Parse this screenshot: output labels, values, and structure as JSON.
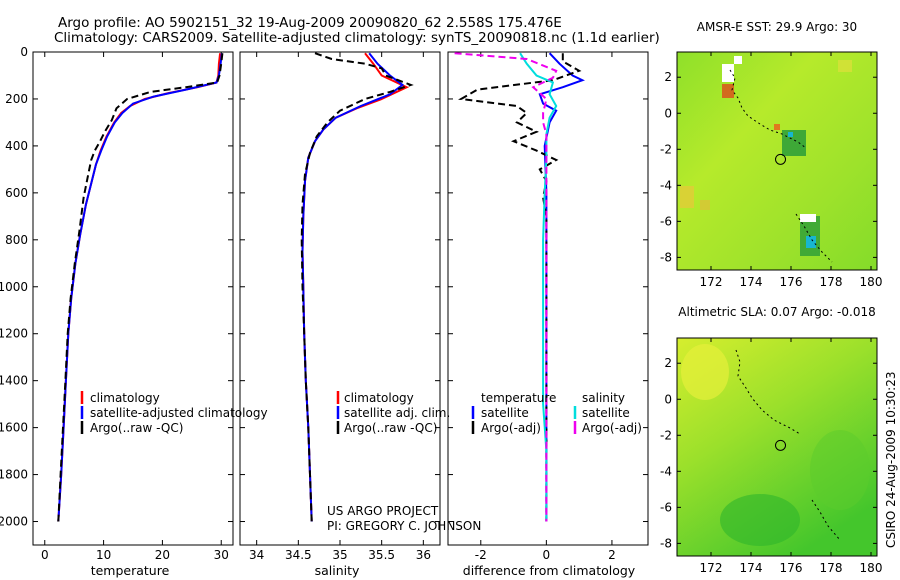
{
  "title_line1": "Argo profile: AO 5902151_32 19-Aug-2009 20090820_62 2.558S 175.476E",
  "title_line2": "Climatology: CARS2009. Satellite-adjusted climatology: synTS_20090818.nc (1.1d earlier)",
  "project_line1": "US ARGO PROJECT",
  "project_line2": "PI: GREGORY C. JOHNSON",
  "side_stamp": "CSIRO 24-Aug-2009 10:30:23",
  "colors": {
    "climatology": "#ff0000",
    "satellite": "#0000ff",
    "argo": "#000000",
    "sat_salinity": "#00dddd",
    "argo_salinity": "#ee00ee"
  },
  "chart_data": [
    {
      "type": "line",
      "id": "temperature",
      "xlabel": "temperature",
      "ylabel": "",
      "xlim": [
        -2,
        32
      ],
      "ylim": [
        2100,
        0
      ],
      "xticks": [
        0,
        10,
        20,
        30
      ],
      "yticks": [
        0,
        200,
        400,
        600,
        800,
        1000,
        1200,
        1400,
        1600,
        1800,
        2000
      ],
      "legend": [
        "climatology",
        "satellite-adjusted climatology",
        "Argo(..raw -QC)"
      ],
      "series": [
        {
          "name": "climatology",
          "color": "#ff0000",
          "dash": "",
          "points": [
            [
              29.8,
              5
            ],
            [
              29.6,
              50
            ],
            [
              29.5,
              100
            ],
            [
              29.2,
              130
            ],
            [
              26,
              150
            ],
            [
              21,
              175
            ],
            [
              17,
              200
            ],
            [
              14.5,
              230
            ],
            [
              13,
              260
            ],
            [
              11.8,
              300
            ],
            [
              10.5,
              360
            ],
            [
              9.5,
              420
            ],
            [
              8.7,
              480
            ],
            [
              8,
              550
            ],
            [
              7,
              650
            ],
            [
              6,
              780
            ],
            [
              5.2,
              900
            ],
            [
              4.5,
              1050
            ],
            [
              4,
              1200
            ],
            [
              3.6,
              1400
            ],
            [
              3.2,
              1600
            ],
            [
              2.8,
              1800
            ],
            [
              2.3,
              2000
            ]
          ]
        },
        {
          "name": "satellite-adjusted climatology",
          "color": "#0000ff",
          "dash": "",
          "points": [
            [
              30.1,
              5
            ],
            [
              29.9,
              50
            ],
            [
              29.6,
              100
            ],
            [
              29.2,
              130
            ],
            [
              24,
              160
            ],
            [
              18.5,
              190
            ],
            [
              15,
              220
            ],
            [
              13.2,
              260
            ],
            [
              11.9,
              300
            ],
            [
              10.6,
              360
            ],
            [
              9.6,
              420
            ],
            [
              8.7,
              480
            ],
            [
              8,
              550
            ],
            [
              7,
              650
            ],
            [
              6,
              780
            ],
            [
              5.2,
              900
            ],
            [
              4.5,
              1050
            ],
            [
              4,
              1200
            ],
            [
              3.6,
              1400
            ],
            [
              3.2,
              1600
            ],
            [
              2.8,
              1800
            ],
            [
              2.3,
              2000
            ]
          ]
        },
        {
          "name": "Argo(..raw -QC)",
          "color": "#000000",
          "dash": "7,4",
          "points": [
            [
              30.2,
              5
            ],
            [
              30,
              50
            ],
            [
              29.7,
              100
            ],
            [
              29.3,
              130
            ],
            [
              24,
              150
            ],
            [
              18,
              170
            ],
            [
              14,
              200
            ],
            [
              12.2,
              240
            ],
            [
              11.4,
              290
            ],
            [
              10.2,
              340
            ],
            [
              9.4,
              380
            ],
            [
              8.5,
              420
            ],
            [
              7.9,
              460
            ],
            [
              7.4,
              520
            ],
            [
              6.6,
              620
            ],
            [
              5.9,
              760
            ],
            [
              5.1,
              900
            ],
            [
              4.4,
              1050
            ],
            [
              3.9,
              1200
            ],
            [
              3.5,
              1400
            ],
            [
              3.1,
              1600
            ],
            [
              2.7,
              1800
            ],
            [
              2.3,
              2000
            ]
          ]
        }
      ]
    },
    {
      "type": "line",
      "id": "salinity",
      "xlabel": "salinity",
      "ylabel": "",
      "xlim": [
        33.8,
        36.2
      ],
      "ylim": [
        2100,
        0
      ],
      "xticks": [
        34,
        34.5,
        35,
        35.5,
        36
      ],
      "legend": [
        "climatology",
        "satellite adj. clim.",
        "Argo(..raw -QC)"
      ],
      "series": [
        {
          "name": "climatology",
          "color": "#ff0000",
          "dash": "",
          "points": [
            [
              35.3,
              5
            ],
            [
              35.4,
              50
            ],
            [
              35.5,
              100
            ],
            [
              35.8,
              150
            ],
            [
              35.5,
              200
            ],
            [
              35.2,
              240
            ],
            [
              34.95,
              280
            ],
            [
              34.8,
              330
            ],
            [
              34.7,
              380
            ],
            [
              34.62,
              450
            ],
            [
              34.58,
              550
            ],
            [
              34.56,
              700
            ],
            [
              34.55,
              850
            ],
            [
              34.56,
              1000
            ],
            [
              34.57,
              1200
            ],
            [
              34.59,
              1400
            ],
            [
              34.62,
              1600
            ],
            [
              34.64,
              1800
            ],
            [
              34.66,
              2000
            ]
          ]
        },
        {
          "name": "satellite adj. clim.",
          "color": "#0000ff",
          "dash": "",
          "points": [
            [
              35.35,
              5
            ],
            [
              35.45,
              50
            ],
            [
              35.6,
              100
            ],
            [
              35.75,
              140
            ],
            [
              35.6,
              180
            ],
            [
              35.25,
              230
            ],
            [
              34.95,
              280
            ],
            [
              34.8,
              330
            ],
            [
              34.7,
              380
            ],
            [
              34.62,
              450
            ],
            [
              34.58,
              550
            ],
            [
              34.56,
              700
            ],
            [
              34.55,
              850
            ],
            [
              34.56,
              1000
            ],
            [
              34.57,
              1200
            ],
            [
              34.59,
              1400
            ],
            [
              34.62,
              1600
            ],
            [
              34.64,
              1800
            ],
            [
              34.66,
              2000
            ]
          ]
        },
        {
          "name": "Argo(..raw -QC)",
          "color": "#000000",
          "dash": "7,4",
          "points": [
            [
              34.7,
              5
            ],
            [
              34.9,
              30
            ],
            [
              35.3,
              50
            ],
            [
              35.5,
              70
            ],
            [
              35.55,
              100
            ],
            [
              35.85,
              140
            ],
            [
              35.6,
              170
            ],
            [
              35.3,
              200
            ],
            [
              35,
              250
            ],
            [
              34.85,
              300
            ],
            [
              34.72,
              360
            ],
            [
              34.64,
              430
            ],
            [
              34.58,
              520
            ],
            [
              34.55,
              650
            ],
            [
              34.54,
              800
            ],
            [
              34.55,
              1000
            ],
            [
              34.57,
              1200
            ],
            [
              34.59,
              1400
            ],
            [
              34.62,
              1600
            ],
            [
              34.64,
              1800
            ],
            [
              34.66,
              2000
            ]
          ]
        }
      ]
    },
    {
      "type": "line",
      "id": "difference",
      "xlabel": "difference from climatology",
      "ylabel": "",
      "xlim": [
        -3,
        3.1
      ],
      "ylim": [
        2100,
        0
      ],
      "xticks": [
        -2,
        0,
        2
      ],
      "legend_temperature_title": "temperature",
      "legend_salinity_title": "salinity",
      "legend": [
        "satellite",
        "Argo(-adj)",
        "satellite",
        "Argo(-adj)"
      ],
      "series": [
        {
          "name": "temperature satellite",
          "color": "#0000ff",
          "dash": "",
          "points": [
            [
              0.1,
              5
            ],
            [
              0.4,
              50
            ],
            [
              0.8,
              100
            ],
            [
              1.1,
              120
            ],
            [
              0.5,
              150
            ],
            [
              -0.2,
              180
            ],
            [
              -0.1,
              220
            ],
            [
              0.3,
              250
            ],
            [
              0.1,
              300
            ],
            [
              -0.05,
              400
            ],
            [
              0,
              600
            ],
            [
              0,
              800
            ],
            [
              0,
              1200
            ],
            [
              0,
              1600
            ],
            [
              0,
              2000
            ]
          ]
        },
        {
          "name": "temperature Argo(-adj)",
          "color": "#000000",
          "dash": "7,4",
          "points": [
            [
              0.5,
              5
            ],
            [
              0.5,
              40
            ],
            [
              1,
              80
            ],
            [
              0.2,
              120
            ],
            [
              -2.1,
              160
            ],
            [
              -2.6,
              200
            ],
            [
              -0.9,
              230
            ],
            [
              -0.6,
              260
            ],
            [
              -0.9,
              300
            ],
            [
              -0.3,
              340
            ],
            [
              -1,
              380
            ],
            [
              -0.3,
              420
            ],
            [
              0.3,
              460
            ],
            [
              -0.2,
              500
            ],
            [
              0,
              550
            ],
            [
              -0.1,
              620
            ],
            [
              0,
              700
            ],
            [
              0,
              900
            ],
            [
              0,
              1200
            ],
            [
              0,
              1600
            ],
            [
              0,
              2000
            ]
          ]
        },
        {
          "name": "salinity satellite",
          "color": "#00dddd",
          "dash": "",
          "points": [
            [
              -0.8,
              5
            ],
            [
              -0.6,
              50
            ],
            [
              -0.3,
              100
            ],
            [
              0.2,
              130
            ],
            [
              0.1,
              180
            ],
            [
              0.3,
              230
            ],
            [
              0.1,
              280
            ],
            [
              0,
              350
            ],
            [
              0,
              450
            ],
            [
              -0.05,
              600
            ],
            [
              -0.1,
              800
            ],
            [
              -0.1,
              1000
            ],
            [
              -0.1,
              1200
            ],
            [
              -0.1,
              1500
            ],
            [
              0,
              1700
            ],
            [
              0,
              2000
            ]
          ]
        },
        {
          "name": "salinity Argo(-adj)",
          "color": "#ee00ee",
          "dash": "7,4",
          "points": [
            [
              -2.8,
              5
            ],
            [
              -0.6,
              30
            ],
            [
              0.3,
              80
            ],
            [
              0.2,
              110
            ],
            [
              -0.4,
              150
            ],
            [
              0,
              200
            ],
            [
              -0.1,
              260
            ],
            [
              -0.1,
              300
            ],
            [
              0,
              350
            ],
            [
              0,
              450
            ],
            [
              0,
              600
            ],
            [
              0,
              800
            ],
            [
              0,
              1200
            ],
            [
              0,
              1600
            ],
            [
              0,
              2000
            ]
          ]
        }
      ]
    },
    {
      "type": "heatmap",
      "id": "amsre-map",
      "title": "AMSR-E SST: 29.9  Argo: 30",
      "xlim": [
        170.3,
        180.3
      ],
      "ylim": [
        -8.7,
        3.4
      ],
      "xticks": [
        172,
        174,
        176,
        178,
        180
      ],
      "yticks": [
        2,
        0,
        -2,
        -4,
        -6,
        -8
      ],
      "marker": [
        175.476,
        -2.558
      ]
    },
    {
      "type": "heatmap",
      "id": "altimetry-map",
      "title": "Altimetric SLA: 0.07  Argo: -0.018",
      "xlim": [
        170.3,
        180.3
      ],
      "ylim": [
        -8.7,
        3.4
      ],
      "xticks": [
        172,
        174,
        176,
        178,
        180
      ],
      "yticks": [
        2,
        0,
        -2,
        -4,
        -6,
        -8
      ],
      "marker": [
        175.476,
        -2.558
      ]
    }
  ]
}
